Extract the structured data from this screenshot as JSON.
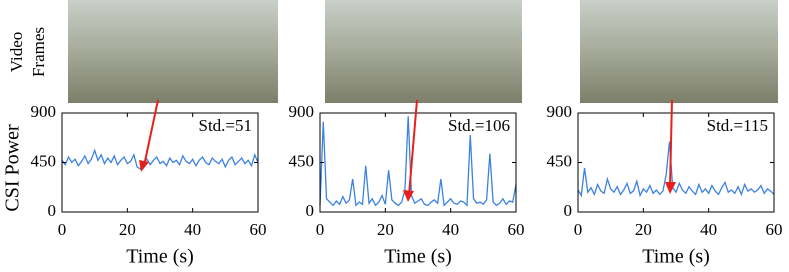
{
  "video_label": [
    "Video",
    "Frames"
  ],
  "chart_data": [
    {
      "type": "line",
      "ylabel": "CSI Power",
      "xlabel": "Time (s)",
      "annotation": "Std.=51",
      "xlim": [
        0,
        60
      ],
      "xticks": [
        0,
        20,
        40,
        60
      ],
      "ylim": [
        0,
        900
      ],
      "yticks": [
        0,
        450,
        900
      ],
      "x": [
        0,
        1,
        2,
        3,
        4,
        5,
        6,
        7,
        8,
        9,
        10,
        11,
        12,
        13,
        14,
        15,
        16,
        17,
        18,
        19,
        20,
        21,
        22,
        23,
        24,
        25,
        26,
        27,
        28,
        29,
        30,
        31,
        32,
        33,
        34,
        35,
        36,
        37,
        38,
        39,
        40,
        41,
        42,
        43,
        44,
        45,
        46,
        47,
        48,
        49,
        50,
        51,
        52,
        53,
        54,
        55,
        56,
        57,
        58,
        59,
        60
      ],
      "series": [
        {
          "color": "#3c82e0",
          "values": [
            470,
            430,
            500,
            450,
            480,
            420,
            460,
            510,
            440,
            480,
            560,
            470,
            520,
            440,
            490,
            450,
            510,
            430,
            470,
            500,
            440,
            460,
            520,
            410,
            390,
            450,
            480,
            430,
            470,
            500,
            440,
            460,
            420,
            490,
            450,
            470,
            430,
            510,
            460,
            440,
            480,
            420,
            470,
            500,
            450,
            430,
            490,
            460,
            440,
            480,
            410,
            470,
            500,
            430,
            460,
            490,
            440,
            470,
            420,
            520,
            450
          ]
        }
      ]
    },
    {
      "type": "line",
      "xlabel": "Time (s)",
      "annotation": "Std.=106",
      "xlim": [
        0,
        60
      ],
      "xticks": [
        0,
        20,
        40,
        60
      ],
      "ylim": [
        0,
        900
      ],
      "yticks": [
        0,
        450,
        900
      ],
      "x": [
        0,
        1,
        2,
        3,
        4,
        5,
        6,
        7,
        8,
        9,
        10,
        11,
        12,
        13,
        14,
        15,
        16,
        17,
        18,
        19,
        20,
        21,
        22,
        23,
        24,
        25,
        26,
        27,
        28,
        29,
        30,
        31,
        32,
        33,
        34,
        35,
        36,
        37,
        38,
        39,
        40,
        41,
        42,
        43,
        44,
        45,
        46,
        47,
        48,
        49,
        50,
        51,
        52,
        53,
        54,
        55,
        56,
        57,
        58,
        59,
        60
      ],
      "series": [
        {
          "color": "#3c82e0",
          "values": [
            60,
            820,
            120,
            90,
            60,
            100,
            70,
            140,
            80,
            110,
            300,
            60,
            90,
            70,
            420,
            80,
            120,
            60,
            90,
            150,
            70,
            380,
            110,
            80,
            60,
            90,
            200,
            870,
            150,
            80,
            100,
            120,
            70,
            60,
            90,
            110,
            80,
            300,
            60,
            90,
            120,
            80,
            70,
            100,
            90,
            60,
            700,
            120,
            80,
            90,
            70,
            110,
            530,
            90,
            60,
            80,
            120,
            70,
            100,
            90,
            250
          ]
        }
      ]
    },
    {
      "type": "line",
      "xlabel": "Time (s)",
      "annotation": "Std.=115",
      "xlim": [
        0,
        60
      ],
      "xticks": [
        0,
        20,
        40,
        60
      ],
      "ylim": [
        0,
        900
      ],
      "yticks": [
        0,
        450,
        900
      ],
      "x": [
        0,
        1,
        2,
        3,
        4,
        5,
        6,
        7,
        8,
        9,
        10,
        11,
        12,
        13,
        14,
        15,
        16,
        17,
        18,
        19,
        20,
        21,
        22,
        23,
        24,
        25,
        26,
        27,
        28,
        29,
        30,
        31,
        32,
        33,
        34,
        35,
        36,
        37,
        38,
        39,
        40,
        41,
        42,
        43,
        44,
        45,
        46,
        47,
        48,
        49,
        50,
        51,
        52,
        53,
        54,
        55,
        56,
        57,
        58,
        59,
        60
      ],
      "series": [
        {
          "color": "#3c82e0",
          "values": [
            200,
            150,
            400,
            180,
            220,
            160,
            250,
            190,
            170,
            300,
            210,
            180,
            230,
            160,
            200,
            260,
            170,
            190,
            280,
            150,
            210,
            180,
            240,
            170,
            200,
            160,
            190,
            340,
            640,
            220,
            180,
            260,
            200,
            170,
            230,
            190,
            160,
            250,
            180,
            210,
            170,
            240,
            190,
            160,
            220,
            270,
            180,
            200,
            170,
            230,
            160,
            250,
            190,
            210,
            180,
            200,
            240,
            170,
            210,
            190,
            160
          ]
        }
      ]
    }
  ]
}
